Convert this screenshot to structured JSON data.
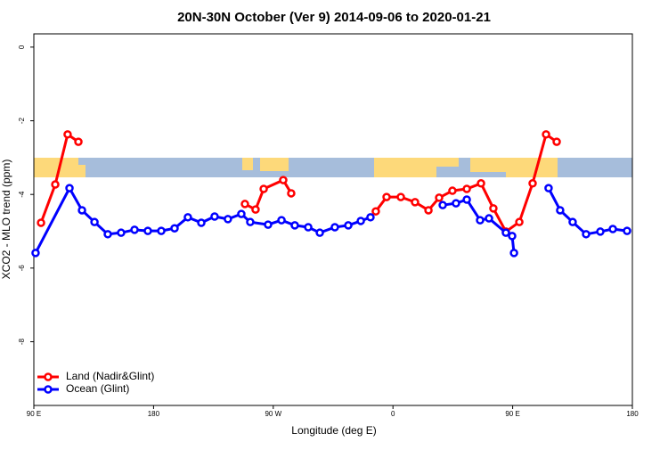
{
  "chart_data": {
    "type": "line",
    "title": "20N-30N October (Ver 9)   2014-09-06 to 2020-01-21",
    "x_label": "Longitude (deg E)",
    "y_label": "XCO2 - MLO trend (ppm)",
    "xlim": [
      90,
      540
    ],
    "ylim": [
      -9.73,
      0.36
    ],
    "xticks": [
      {
        "value": 90,
        "label": "90 E"
      },
      180,
      {
        "value": 270,
        "label": "90 W"
      },
      {
        "value": 360,
        "label": "0"
      },
      {
        "value": 450,
        "label": "90 E"
      },
      {
        "value": 540,
        "label": "180"
      }
    ],
    "yticks": [
      0,
      -2,
      -4,
      -6,
      -8
    ],
    "legend": "bottom-left",
    "series": [
      {
        "name": "Land (Nadir&Glint)",
        "color": "#ff0000",
        "x": [
          95.4,
          106.1,
          115.4,
          123.5,
          null,
          248.7,
          256.7,
          262.8,
          277.5,
          283.5,
          null,
          347.1,
          355.2,
          365.9,
          376.6,
          386.7,
          394.7,
          404.7,
          415.5,
          426.2,
          435.5,
          444.9,
          455.0,
          465.0,
          475.1,
          483.1
        ],
        "values": [
          -4.77,
          -3.73,
          -2.37,
          -2.57,
          null,
          -4.26,
          -4.41,
          -3.85,
          -3.61,
          -3.97,
          null,
          -4.46,
          -4.07,
          -4.07,
          -4.21,
          -4.43,
          -4.09,
          -3.9,
          -3.85,
          -3.7,
          -4.38,
          -5.01,
          -4.75,
          -3.7,
          -2.37,
          -2.57
        ]
      },
      {
        "name": "Ocean (Glint)",
        "color": "#0000ff",
        "x": [
          91.3,
          116.8,
          126.2,
          135.6,
          145.6,
          155.6,
          165.7,
          175.7,
          185.8,
          195.8,
          205.8,
          215.9,
          225.9,
          235.9,
          246.0,
          252.7,
          266.1,
          276.2,
          286.2,
          296.3,
          305.0,
          316.3,
          326.4,
          335.8,
          343.1,
          null,
          397.4,
          407.4,
          415.5,
          425.5,
          432.2,
          444.9,
          449.6,
          451.0,
          null,
          477.0,
          485.7,
          495.1,
          505.2,
          515.9,
          525.3,
          536.0
        ],
        "values": [
          -5.59,
          -3.83,
          -4.43,
          -4.75,
          -5.08,
          -5.04,
          -4.96,
          -4.99,
          -4.99,
          -4.92,
          -4.62,
          -4.77,
          -4.6,
          -4.67,
          -4.53,
          -4.75,
          -4.82,
          -4.7,
          -4.84,
          -4.89,
          -5.04,
          -4.89,
          -4.84,
          -4.72,
          -4.62,
          null,
          -4.29,
          -4.24,
          -4.14,
          -4.7,
          -4.65,
          -5.04,
          -5.13,
          -5.59,
          null,
          -3.83,
          -4.43,
          -4.75,
          -5.08,
          -5.01,
          -4.94,
          -4.99
        ]
      }
    ]
  }
}
